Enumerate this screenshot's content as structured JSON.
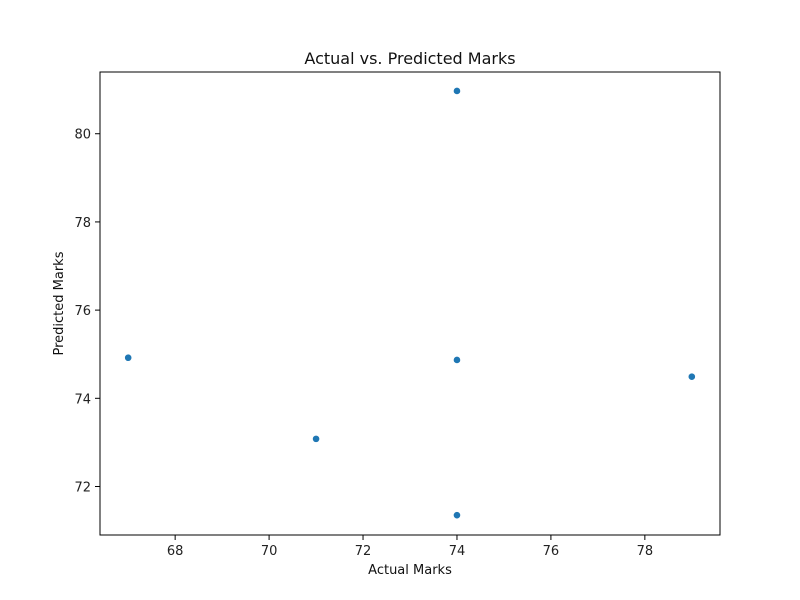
{
  "chart_data": {
    "type": "scatter",
    "title": "Actual vs. Predicted Marks",
    "xlabel": "Actual Marks",
    "ylabel": "Predicted Marks",
    "xlim": [
      66.4,
      79.6
    ],
    "ylim": [
      70.9,
      81.4
    ],
    "xticks": [
      68,
      70,
      72,
      74,
      76,
      78
    ],
    "yticks": [
      72,
      74,
      76,
      78,
      80
    ],
    "grid": false,
    "point_color": "#1f77b4",
    "points": [
      {
        "x": 67,
        "y": 74.92
      },
      {
        "x": 71,
        "y": 73.08
      },
      {
        "x": 74,
        "y": 80.97
      },
      {
        "x": 74,
        "y": 74.87
      },
      {
        "x": 74,
        "y": 71.35
      },
      {
        "x": 79,
        "y": 74.49
      }
    ]
  }
}
